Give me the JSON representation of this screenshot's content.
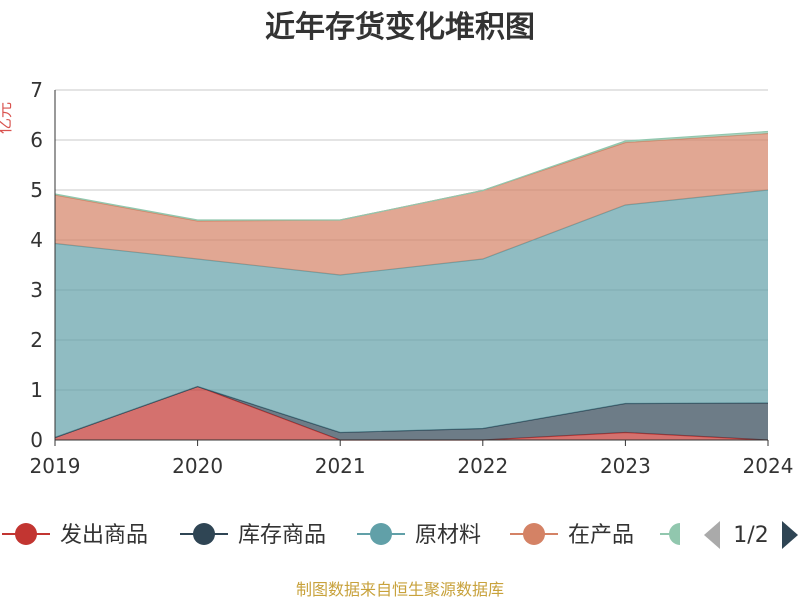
{
  "chart_data": {
    "type": "area",
    "stacked": true,
    "title": "近年存货变化堆积图",
    "ylabel": "亿元",
    "categories": [
      "2019",
      "2020",
      "2021",
      "2022",
      "2023",
      "2024"
    ],
    "ylim": [
      0,
      7
    ],
    "yticks": [
      0,
      1,
      2,
      3,
      4,
      5,
      6,
      7
    ],
    "grid": true,
    "legend_position": "bottom",
    "series": [
      {
        "name": "发出商品",
        "color": "#c23531",
        "values": [
          0.05,
          1.07,
          0.0,
          0.0,
          0.15,
          0.0
        ]
      },
      {
        "name": "库存商品",
        "color": "#2f4554",
        "values": [
          0.0,
          0.0,
          0.15,
          0.23,
          0.58,
          0.74
        ]
      },
      {
        "name": "原材料",
        "color": "#61a0a8",
        "values": [
          3.88,
          2.55,
          3.15,
          3.39,
          3.97,
          4.26
        ]
      },
      {
        "name": "在产品",
        "color": "#d48265",
        "values": [
          0.97,
          0.76,
          1.1,
          1.37,
          1.25,
          1.13
        ]
      },
      {
        "name": "",
        "color": "#91c7ae",
        "values": [
          0.02,
          0.02,
          0.0,
          0.0,
          0.03,
          0.04
        ]
      }
    ]
  },
  "legend": {
    "pager_text": "1/2",
    "prev_icon": "triangle-left-icon",
    "next_icon": "triangle-right-icon"
  },
  "source_note": "制图数据来自恒生聚源数据库"
}
